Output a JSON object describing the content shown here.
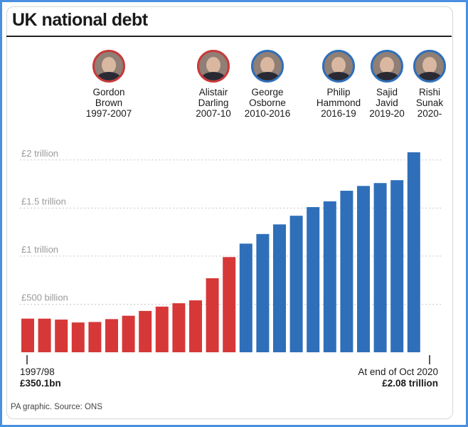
{
  "title": "UK national debt",
  "source": "PA graphic. Source: ONS",
  "colors": {
    "labour": "#d63838",
    "conservative": "#2f6fba"
  },
  "chancellors": [
    {
      "name": "Gordon\nBrown\n1997-2007",
      "party": "labour"
    },
    {
      "name": "Alistair\nDarling\n2007-10",
      "party": "labour"
    },
    {
      "name": "George\nOsborne\n2010-2016",
      "party": "conservative"
    },
    {
      "name": "Philip\nHammond\n2016-19",
      "party": "conservative"
    },
    {
      "name": "Sajid\nJavid\n2019-20",
      "party": "conservative"
    },
    {
      "name": "Rishi\nSunak\n2020-",
      "party": "conservative"
    }
  ],
  "start_label": {
    "period": "1997/98",
    "value": "£350.1bn"
  },
  "end_label": {
    "period": "At end of Oct 2020",
    "value": "£2.08 trillion"
  },
  "chart_data": {
    "type": "bar",
    "unit": "£ billion",
    "ylim": [
      0,
      2080
    ],
    "y_ticks": [
      {
        "value": 500,
        "label": "£500 billion"
      },
      {
        "value": 1000,
        "label": "£1 trillion"
      },
      {
        "value": 1500,
        "label": "£1.5 trillion"
      },
      {
        "value": 2000,
        "label": "£2 trillion"
      }
    ],
    "grid": true,
    "legend": "none",
    "values": [
      350.1,
      350,
      340,
      310,
      315,
      345,
      380,
      430,
      475,
      510,
      540,
      770,
      990,
      1130,
      1230,
      1330,
      1420,
      1510,
      1570,
      1680,
      1730,
      1760,
      1790,
      2080
    ],
    "party": [
      "labour",
      "labour",
      "labour",
      "labour",
      "labour",
      "labour",
      "labour",
      "labour",
      "labour",
      "labour",
      "labour",
      "labour",
      "labour",
      "conservative",
      "conservative",
      "conservative",
      "conservative",
      "conservative",
      "conservative",
      "conservative",
      "conservative",
      "conservative",
      "conservative",
      "conservative"
    ]
  }
}
